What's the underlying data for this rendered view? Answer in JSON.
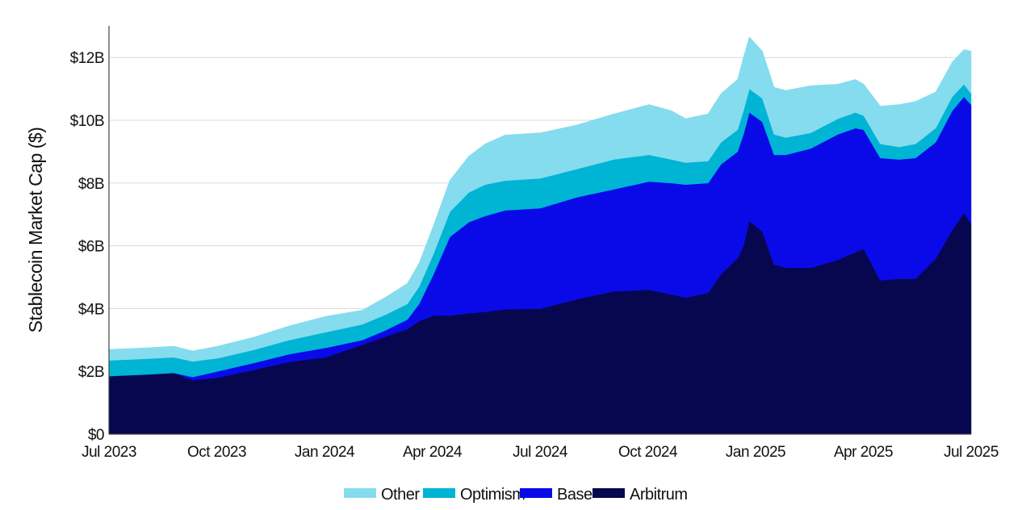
{
  "chart_data": {
    "type": "area",
    "stacked": true,
    "title": "",
    "xlabel": "",
    "ylabel": "Stablecoin Market Cap ($)",
    "x_ticks": [
      "Jul 2023",
      "Oct 2023",
      "Jan 2024",
      "Apr 2024",
      "Jul 2024",
      "Oct 2024",
      "Jan 2025",
      "Apr 2025",
      "Jul 2025"
    ],
    "y_ticks": [
      "$0",
      "$2B",
      "$4B",
      "$6B",
      "$8B",
      "$10B",
      "$12B"
    ],
    "ylim": [
      0,
      13
    ],
    "y_unit": "billions USD",
    "grid": "horizontal",
    "legend_position": "bottom",
    "x": [
      "2023-07-01",
      "2023-08-01",
      "2023-08-25",
      "2023-09-10",
      "2023-10-01",
      "2023-11-01",
      "2023-12-01",
      "2024-01-01",
      "2024-02-01",
      "2024-02-20",
      "2024-03-10",
      "2024-03-20",
      "2024-04-01",
      "2024-04-15",
      "2024-05-01",
      "2024-05-15",
      "2024-06-01",
      "2024-07-01",
      "2024-08-01",
      "2024-09-01",
      "2024-10-01",
      "2024-10-20",
      "2024-11-01",
      "2024-11-20",
      "2024-12-01",
      "2024-12-15",
      "2024-12-20",
      "2024-12-25",
      "2025-01-05",
      "2025-01-15",
      "2025-01-25",
      "2025-02-15",
      "2025-03-10",
      "2025-03-25",
      "2025-04-01",
      "2025-04-15",
      "2025-05-01",
      "2025-05-15",
      "2025-06-01",
      "2025-06-15",
      "2025-06-25",
      "2025-07-01"
    ],
    "series": [
      {
        "name": "Arbitrum",
        "color": "#07074f",
        "values": [
          1.85,
          1.9,
          1.95,
          1.72,
          1.8,
          2.05,
          2.3,
          2.45,
          2.85,
          3.1,
          3.35,
          3.6,
          3.78,
          3.78,
          3.85,
          3.9,
          3.98,
          4.0,
          4.3,
          4.55,
          4.6,
          4.45,
          4.35,
          4.5,
          5.1,
          5.6,
          6.0,
          6.8,
          6.45,
          5.4,
          5.3,
          5.3,
          5.55,
          5.8,
          5.9,
          4.9,
          4.95,
          4.95,
          5.6,
          6.5,
          7.05,
          6.7
        ]
      },
      {
        "name": "Base",
        "color": "#0a0ae8",
        "values": [
          0.0,
          0.0,
          0.0,
          0.1,
          0.2,
          0.22,
          0.25,
          0.3,
          0.15,
          0.2,
          0.3,
          0.55,
          1.3,
          2.5,
          2.9,
          3.05,
          3.15,
          3.2,
          3.25,
          3.25,
          3.45,
          3.55,
          3.6,
          3.5,
          3.5,
          3.4,
          3.55,
          3.45,
          3.5,
          3.5,
          3.6,
          3.8,
          4.0,
          3.95,
          3.8,
          3.9,
          3.8,
          3.85,
          3.7,
          3.8,
          3.7,
          3.8
        ]
      },
      {
        "name": "Optimism",
        "color": "#00b4d4",
        "values": [
          0.5,
          0.5,
          0.5,
          0.5,
          0.42,
          0.42,
          0.45,
          0.5,
          0.5,
          0.5,
          0.5,
          0.55,
          0.65,
          0.8,
          0.95,
          1.0,
          0.95,
          0.95,
          0.9,
          0.95,
          0.85,
          0.75,
          0.7,
          0.7,
          0.7,
          0.7,
          0.75,
          0.75,
          0.75,
          0.65,
          0.55,
          0.5,
          0.5,
          0.5,
          0.45,
          0.45,
          0.4,
          0.45,
          0.45,
          0.45,
          0.4,
          0.35
        ]
      },
      {
        "name": "Other",
        "color": "#85dcee",
        "values": [
          0.35,
          0.35,
          0.35,
          0.33,
          0.38,
          0.4,
          0.45,
          0.5,
          0.45,
          0.55,
          0.65,
          0.75,
          0.9,
          1.0,
          1.15,
          1.3,
          1.45,
          1.45,
          1.4,
          1.45,
          1.6,
          1.55,
          1.4,
          1.5,
          1.55,
          1.6,
          1.7,
          1.65,
          1.5,
          1.5,
          1.5,
          1.5,
          1.1,
          1.05,
          1.0,
          1.2,
          1.35,
          1.35,
          1.15,
          1.1,
          1.1,
          1.35
        ]
      }
    ],
    "legend": [
      "Other",
      "Optimism",
      "Base",
      "Arbitrum"
    ]
  }
}
